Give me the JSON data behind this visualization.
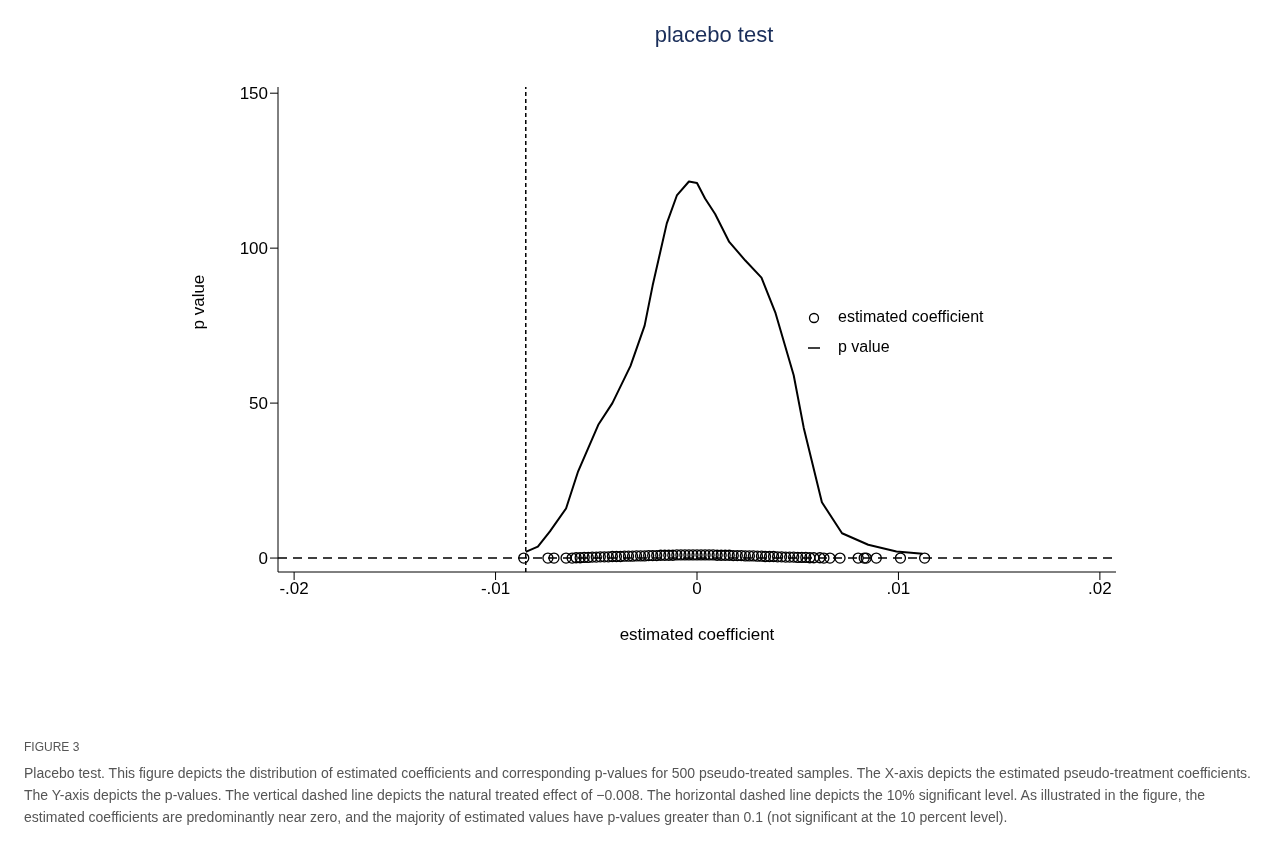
{
  "chart_data": {
    "type": "line",
    "title": "placebo test",
    "xlabel": "estimated coefficient",
    "ylabel": "p value",
    "xlim": [
      -0.0208,
      0.0208
    ],
    "ylim": [
      -4.5,
      152
    ],
    "xticks": [
      {
        "value": -0.02,
        "label": "-.02"
      },
      {
        "value": -0.01,
        "label": "-.01"
      },
      0,
      {
        "value": 0.01,
        "label": ".01"
      },
      {
        "value": 0.02,
        "label": ".02"
      }
    ],
    "yticks": [
      0,
      50,
      100,
      150
    ],
    "legend": "right",
    "series": [
      {
        "name": "estimated coefficient",
        "type": "scatter",
        "color": "#000000",
        "marker": "circle",
        "x": [
          -0.0086,
          -0.0074,
          -0.0071,
          -0.0065,
          -0.0062,
          -0.006,
          -0.0058,
          -0.0056,
          -0.0054,
          -0.0052,
          -0.005,
          -0.0048,
          -0.0046,
          -0.0044,
          -0.0042,
          -0.004,
          -0.0038,
          -0.0036,
          -0.0034,
          -0.0032,
          -0.003,
          -0.0028,
          -0.0026,
          -0.0024,
          -0.0022,
          -0.002,
          -0.0018,
          -0.0016,
          -0.0014,
          -0.0012,
          -0.001,
          -0.0008,
          -0.0006,
          -0.0004,
          -0.0002,
          0,
          0.0002,
          0.0004,
          0.0006,
          0.0008,
          0.001,
          0.0012,
          0.0014,
          0.0016,
          0.0018,
          0.002,
          0.0022,
          0.0024,
          0.0026,
          0.0028,
          0.003,
          0.0032,
          0.0034,
          0.0036,
          0.0038,
          0.004,
          0.0042,
          0.0044,
          0.0046,
          0.0048,
          0.005,
          0.0052,
          0.0054,
          0.0056,
          0.0058,
          0.0061,
          0.0063,
          0.0066,
          0.0071,
          0.008,
          0.0083,
          0.0084,
          0.0089,
          0.0101,
          0.0113
        ],
        "values": [
          0,
          0,
          0,
          0,
          0,
          0.1,
          0.1,
          0.2,
          0.2,
          0.3,
          0.3,
          0.4,
          0.4,
          0.4,
          0.5,
          0.5,
          0.5,
          0.6,
          0.6,
          0.6,
          0.7,
          0.7,
          0.7,
          0.8,
          0.8,
          0.8,
          0.9,
          0.9,
          0.9,
          0.9,
          1,
          1,
          1,
          1,
          1,
          1,
          1,
          1,
          1,
          1,
          0.9,
          0.9,
          0.9,
          0.9,
          0.8,
          0.8,
          0.8,
          0.7,
          0.7,
          0.7,
          0.6,
          0.6,
          0.5,
          0.5,
          0.5,
          0.4,
          0.4,
          0.3,
          0.3,
          0.3,
          0.2,
          0.2,
          0.2,
          0.1,
          0.1,
          0.1,
          0,
          0,
          0,
          0,
          0,
          0,
          0,
          0,
          0
        ]
      },
      {
        "name": "p value",
        "type": "line",
        "color": "#000000",
        "marker": "none",
        "line_style": "solid",
        "x": [
          -0.0085,
          -0.0079,
          -0.0073,
          -0.0065,
          -0.0059,
          -0.0049,
          -0.0042,
          -0.0033,
          -0.0026,
          -0.0022,
          -0.0015,
          -0.001,
          -0.0004,
          0,
          0.0004,
          0.0009,
          0.0016,
          0.0024,
          0.0032,
          0.0039,
          0.0048,
          0.0053,
          0.0062,
          0.0072,
          0.0085,
          0.0099,
          0.0112
        ],
        "values": [
          2,
          3.7,
          8.6,
          16,
          28,
          43,
          50,
          62,
          75,
          88,
          108,
          117,
          121.5,
          121,
          116,
          111,
          102,
          96,
          90.5,
          79,
          59,
          42,
          18,
          8,
          4.3,
          2.1,
          1.4
        ]
      }
    ],
    "ref_lines": [
      {
        "axis": "x",
        "value": -0.0085,
        "color": "#000000",
        "line_style": "dotted"
      },
      {
        "axis": "y",
        "value": 0,
        "color": "#000000",
        "line_style": "dashed"
      }
    ],
    "annotations": [
      "FIGURE 3",
      "Placebo test. This figure depicts the distribution of estimated coefficients and corresponding p-values for 500 pseudo-treated samples. The X-axis depicts the estimated pseudo-treatment coefficients. The Y-axis depicts the p-values. The vertical dashed line depicts the natural treated effect of −0.008. The horizontal dashed line depicts the 10% significant level. As illustrated in the figure, the estimated coefficients are predominantly near zero, and the majority of estimated values have p-values greater than 0.1 (not significant at the 10 percent level)."
    ]
  }
}
